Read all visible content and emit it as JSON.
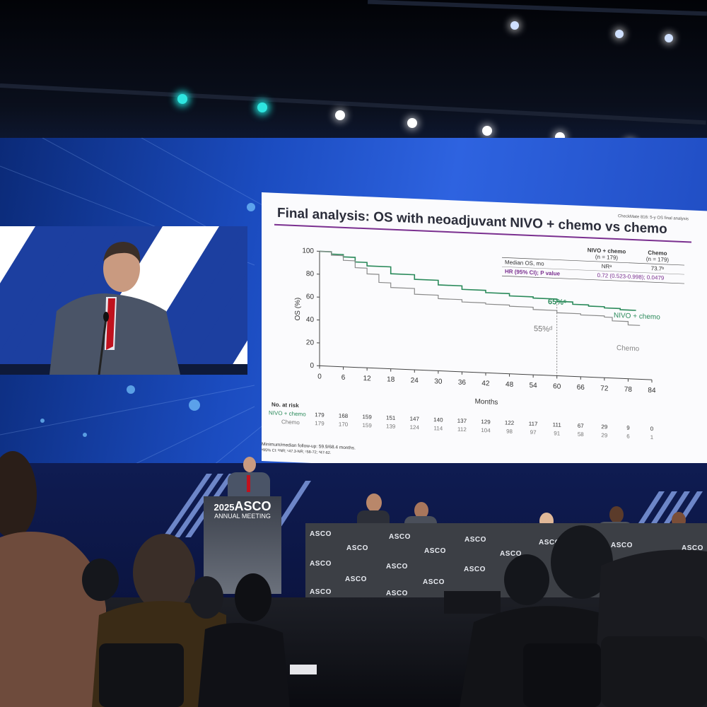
{
  "podium": {
    "year": "2025",
    "brand": "ASCO",
    "subtitle": "ANNUAL MEETING"
  },
  "table_logo": "ASCO",
  "slide": {
    "title": "Final analysis: OS with neoadjuvant NIVO + chemo vs chemo",
    "subtitle": "CheckMate 816: 5-y OS final analysis",
    "table": {
      "col1": "NIVO + chemo",
      "col1_n": "(n = 179)",
      "col2": "Chemo",
      "col2_n": "(n = 179)",
      "row1_label": "Median OS, mo",
      "row1_v1": "NRᵃ",
      "row1_v2": "73.7ᵇ",
      "row2_label": "HR (95% CI); P value",
      "row2_value": "0.72 (0.523-0.998); 0.0479"
    },
    "annot_nivo_pct": "65%ᶜ",
    "annot_chemo_pct": "55%ᵈ",
    "risk_title": "No. at risk",
    "footnote1": "Minimum/median follow-up: 59.9/68.4 months.",
    "footnote2": "ᵃ95% CI: ᵇNR; ᶜ47.3-NR; ᶜ58-72; ᵈ47-62."
  },
  "chart_data": {
    "type": "line",
    "ylabel": "OS (%)",
    "xlabel": "Months",
    "xlim": [
      0,
      84
    ],
    "ylim": [
      0,
      100
    ],
    "xticks": [
      0,
      6,
      12,
      18,
      24,
      30,
      36,
      42,
      48,
      54,
      60,
      66,
      72,
      78,
      84
    ],
    "yticks": [
      0,
      20,
      40,
      60,
      80,
      100
    ],
    "series": [
      {
        "name": "NIVO + chemo",
        "color": "#2a8a5a",
        "x": [
          0,
          3,
          6,
          9,
          12,
          18,
          24,
          30,
          36,
          42,
          48,
          54,
          60,
          64,
          68,
          72,
          76,
          80
        ],
        "y": [
          100,
          98,
          96,
          92,
          89,
          83,
          79,
          75,
          72,
          70,
          68,
          67,
          65,
          63,
          62,
          61,
          60,
          60
        ]
      },
      {
        "name": "Chemo",
        "color": "#8a8a8a",
        "x": [
          0,
          3,
          6,
          9,
          12,
          15,
          18,
          24,
          30,
          36,
          42,
          48,
          54,
          60,
          66,
          72,
          74,
          78,
          81
        ],
        "y": [
          100,
          97,
          93,
          87,
          82,
          75,
          71,
          66,
          63,
          61,
          60,
          59,
          57,
          55,
          54,
          53,
          50,
          47,
          47
        ]
      }
    ],
    "risk_table": [
      {
        "name": "NIVO + chemo",
        "values": [
          179,
          168,
          159,
          151,
          147,
          140,
          137,
          129,
          122,
          117,
          111,
          67,
          29,
          9,
          0
        ]
      },
      {
        "name": "Chemo",
        "values": [
          179,
          170,
          159,
          139,
          124,
          114,
          112,
          104,
          98,
          97,
          91,
          58,
          29,
          6,
          1
        ]
      }
    ]
  }
}
